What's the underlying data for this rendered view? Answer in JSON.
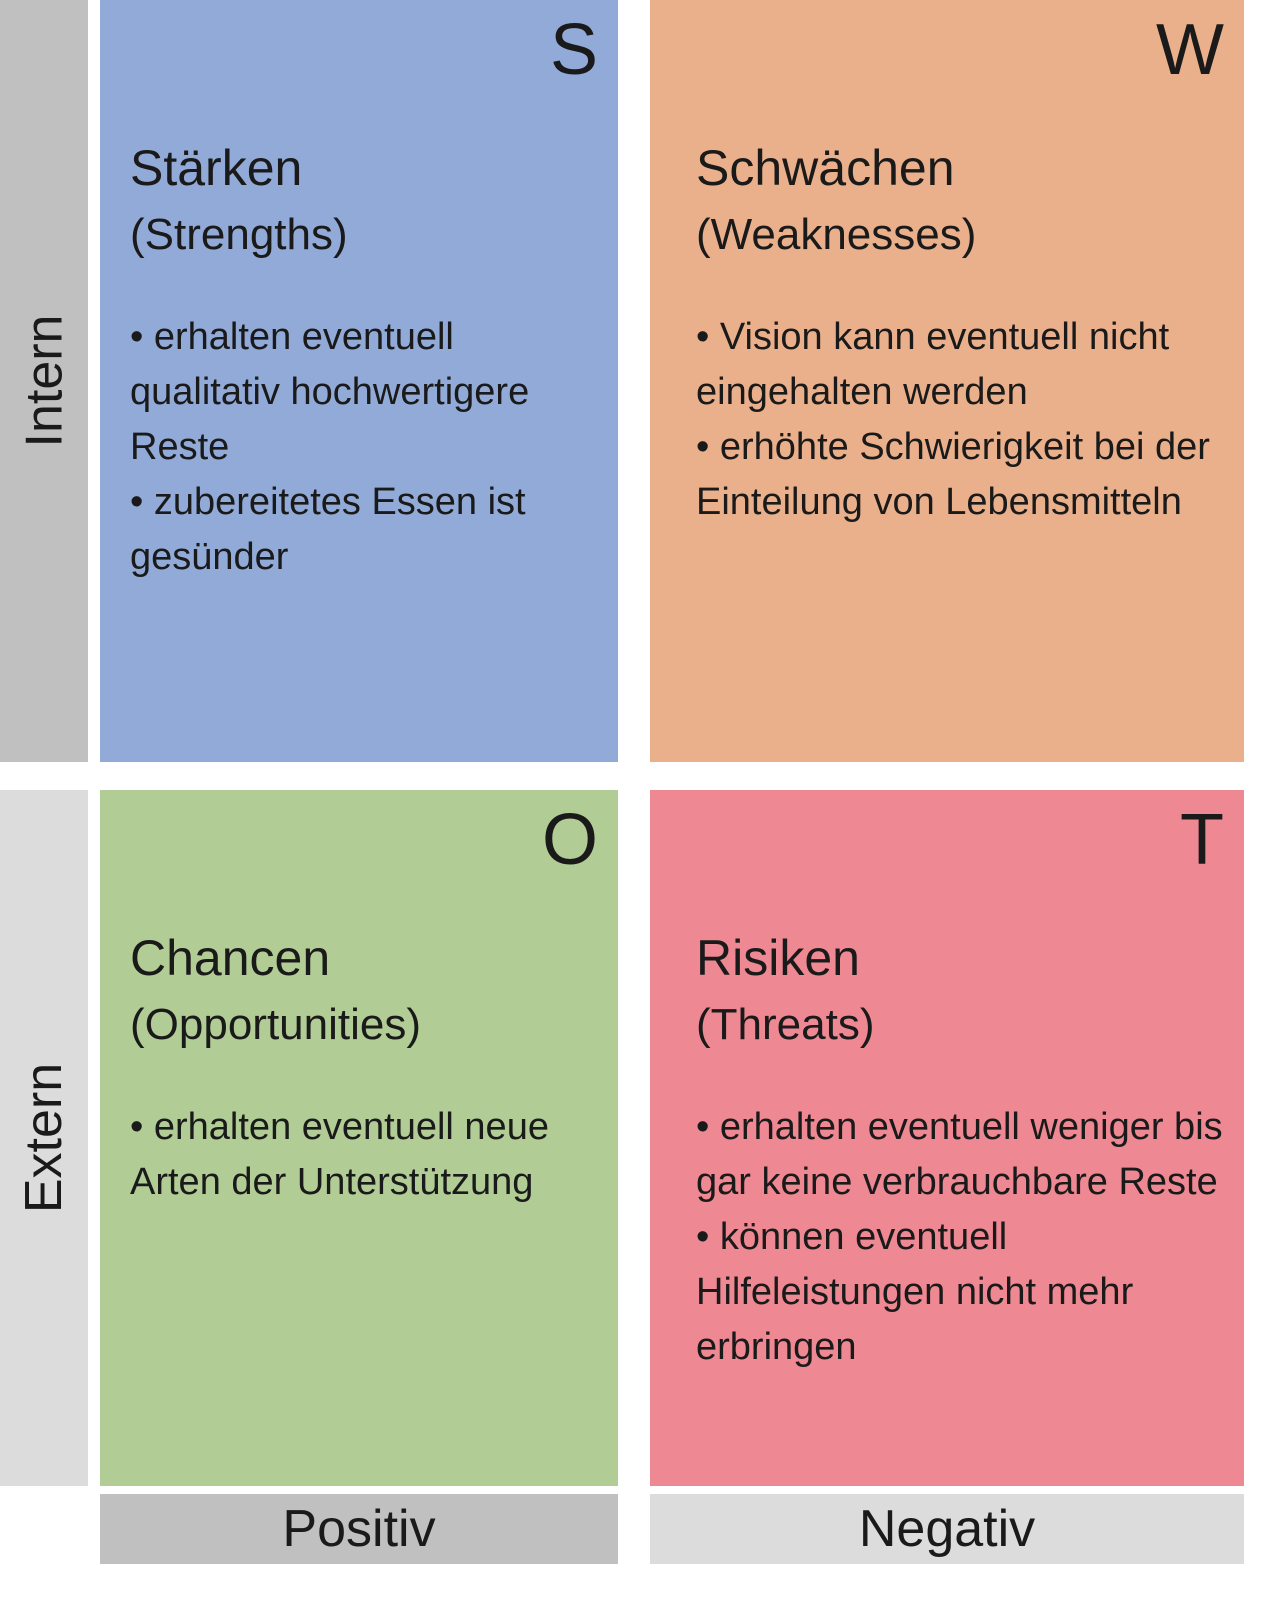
{
  "axes": {
    "rows": [
      "Intern",
      "Extern"
    ],
    "columns": [
      "Positiv",
      "Negativ"
    ]
  },
  "quadrants": {
    "s": {
      "letter": "S",
      "title": "Stärken",
      "subtitle": "(Strengths)",
      "items": [
        "erhalten eventuell qualitativ hochwertigere Reste",
        "zubereitetes Essen ist gesünder"
      ],
      "color": "#92aad8"
    },
    "w": {
      "letter": "W",
      "title": "Schwächen",
      "subtitle": "(Weaknesses)",
      "items": [
        "Vision kann eventuell nicht eingehalten werden",
        "erhöhte Schwierigkeit bei der Einteilung von Lebensmitteln"
      ],
      "color": "#eab08b"
    },
    "o": {
      "letter": "O",
      "title": "Chancen",
      "subtitle": "(Opportunities)",
      "items": [
        "erhalten eventuell neue Arten der Unterstützung"
      ],
      "color": "#b1cd95"
    },
    "t": {
      "letter": "T",
      "title": "Risiken",
      "subtitle": "(Threats)",
      "items": [
        "erhalten eventuell weniger bis gar keine verbrauchbare Reste",
        "können eventuell Hilfeleistungen nicht mehr erbringen"
      ],
      "color": "#ee8892"
    }
  }
}
